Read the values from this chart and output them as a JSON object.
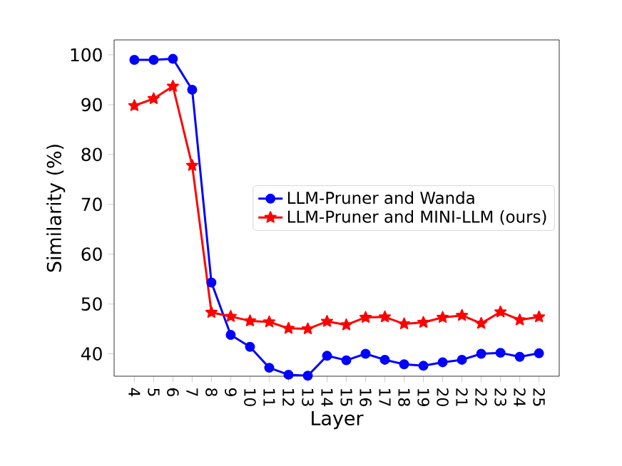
{
  "chart_data": {
    "type": "line",
    "xlabel": "Layer",
    "ylabel": "Similarity (%)",
    "categories": [
      "4",
      "5",
      "6",
      "7",
      "8",
      "9",
      "10",
      "11",
      "12",
      "13",
      "14",
      "15",
      "16",
      "17",
      "18",
      "19",
      "20",
      "21",
      "22",
      "23",
      "24",
      "25"
    ],
    "series": [
      {
        "name": "LLM-Pruner and Wanda",
        "color": "#0000ff",
        "marker": "circle",
        "values": [
          99,
          99,
          99.2,
          93,
          54.3,
          43.8,
          41.4,
          37.2,
          35.8,
          35.6,
          39.6,
          38.7,
          40,
          38.8,
          37.9,
          37.6,
          38.3,
          38.8,
          40,
          40.2,
          39.4,
          40.1
        ]
      },
      {
        "name": "LLM-Pruner and MINI-LLM (ours)",
        "color": "#ff0000",
        "marker": "star",
        "values": [
          89.8,
          91.2,
          93.7,
          77.8,
          48.3,
          47.5,
          46.6,
          46.4,
          45.1,
          45,
          46.5,
          45.8,
          47.3,
          47.4,
          46,
          46.3,
          47.3,
          47.7,
          46.1,
          48.4,
          46.8,
          47.4
        ]
      }
    ],
    "ylim": [
      35.5,
      103
    ],
    "yticks": [
      40,
      50,
      60,
      70,
      80,
      90,
      100
    ],
    "legend": "right",
    "grid": false
  }
}
